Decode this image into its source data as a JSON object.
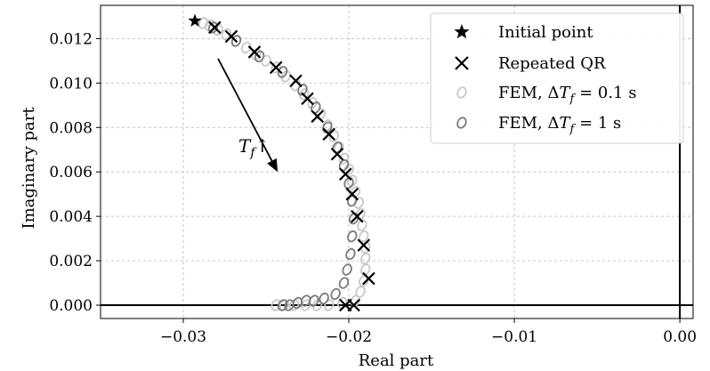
{
  "chart_data": {
    "type": "scatter",
    "xlabel": "Real part",
    "ylabel": "Imaginary part",
    "xlim": [
      -0.035,
      0.0008
    ],
    "ylim": [
      -0.0006,
      0.0135
    ],
    "x_ticks": [
      {
        "value": -0.03,
        "label": "−0.03"
      },
      {
        "value": -0.02,
        "label": "−0.02"
      },
      {
        "value": -0.01,
        "label": "−0.01"
      },
      {
        "value": 0.0,
        "label": "0.00"
      }
    ],
    "y_ticks": [
      {
        "value": 0.0,
        "label": "0.000"
      },
      {
        "value": 0.002,
        "label": "0.002"
      },
      {
        "value": 0.004,
        "label": "0.004"
      },
      {
        "value": 0.006,
        "label": "0.006"
      },
      {
        "value": 0.008,
        "label": "0.008"
      },
      {
        "value": 0.01,
        "label": "0.010"
      },
      {
        "value": 0.012,
        "label": "0.012"
      }
    ],
    "grid": true,
    "legend_position": "top-right",
    "reference_lines": {
      "x": 0.0,
      "y": 0.0
    },
    "annotation": {
      "text": "T_f↑",
      "from": [
        -0.0279,
        0.0111
      ],
      "to": [
        -0.0243,
        0.006
      ]
    },
    "series": [
      {
        "name": "Initial point",
        "marker": "star",
        "color": "#000000",
        "points": [
          [
            -0.0293,
            0.0128
          ]
        ]
      },
      {
        "name": "Repeated QR",
        "marker": "x",
        "color": "#000000",
        "points": [
          [
            -0.0281,
            0.0125
          ],
          [
            -0.0271,
            0.0121
          ],
          [
            -0.0257,
            0.0114
          ],
          [
            -0.0244,
            0.0107
          ],
          [
            -0.0232,
            0.0101
          ],
          [
            -0.0225,
            0.0093
          ],
          [
            -0.0219,
            0.0085
          ],
          [
            -0.0212,
            0.0077
          ],
          [
            -0.0207,
            0.0068
          ],
          [
            -0.0202,
            0.0059
          ],
          [
            -0.0198,
            0.005
          ],
          [
            -0.0195,
            0.004
          ],
          [
            -0.0191,
            0.0027
          ],
          [
            -0.0188,
            0.0012
          ],
          [
            -0.0202,
            0.0
          ],
          [
            -0.0197,
            0.0
          ]
        ]
      },
      {
        "name": "FEM, ΔT_f = 0.1 s",
        "marker": "o",
        "color": "#c8c8c8",
        "points": [
          [
            -0.0288,
            0.0127
          ],
          [
            -0.0284,
            0.0126
          ],
          [
            -0.0279,
            0.0124
          ],
          [
            -0.0274,
            0.0122
          ],
          [
            -0.0268,
            0.0119
          ],
          [
            -0.0262,
            0.0116
          ],
          [
            -0.0256,
            0.0113
          ],
          [
            -0.025,
            0.011
          ],
          [
            -0.0244,
            0.0107
          ],
          [
            -0.0238,
            0.0103
          ],
          [
            -0.0232,
            0.0099
          ],
          [
            -0.0227,
            0.0095
          ],
          [
            -0.0222,
            0.0091
          ],
          [
            -0.0217,
            0.0086
          ],
          [
            -0.0213,
            0.0081
          ],
          [
            -0.0209,
            0.0076
          ],
          [
            -0.0206,
            0.0071
          ],
          [
            -0.0203,
            0.0066
          ],
          [
            -0.02,
            0.0061
          ],
          [
            -0.0198,
            0.0056
          ],
          [
            -0.0196,
            0.0051
          ],
          [
            -0.0194,
            0.0046
          ],
          [
            -0.0193,
            0.0041
          ],
          [
            -0.0192,
            0.0036
          ],
          [
            -0.0191,
            0.0031
          ],
          [
            -0.019,
            0.0026
          ],
          [
            -0.019,
            0.0021
          ],
          [
            -0.019,
            0.0016
          ],
          [
            -0.0191,
            0.0011
          ],
          [
            -0.0193,
            0.0006
          ],
          [
            -0.0196,
            0.0002
          ],
          [
            -0.0204,
            0.0001
          ],
          [
            -0.0212,
            0.0
          ],
          [
            -0.0219,
            0.0
          ],
          [
            -0.0226,
            0.0
          ],
          [
            -0.0233,
            0.0
          ],
          [
            -0.0239,
            0.0
          ],
          [
            -0.0244,
            0.0
          ]
        ]
      },
      {
        "name": "FEM, ΔT_f = 1 s",
        "marker": "o",
        "color": "#7a7a7a",
        "points": [
          [
            -0.0282,
            0.0125
          ],
          [
            -0.0268,
            0.0119
          ],
          [
            -0.0254,
            0.0112
          ],
          [
            -0.024,
            0.0105
          ],
          [
            -0.0228,
            0.0097
          ],
          [
            -0.022,
            0.0089
          ],
          [
            -0.0213,
            0.008
          ],
          [
            -0.0207,
            0.0071
          ],
          [
            -0.0203,
            0.0063
          ],
          [
            -0.02,
            0.0055
          ],
          [
            -0.0198,
            0.0047
          ],
          [
            -0.0197,
            0.0039
          ],
          [
            -0.0198,
            0.0031
          ],
          [
            -0.0199,
            0.0023
          ],
          [
            -0.0201,
            0.0016
          ],
          [
            -0.0203,
            0.001
          ],
          [
            -0.0208,
            0.0005
          ],
          [
            -0.0215,
            0.0003
          ],
          [
            -0.0221,
            0.0002
          ],
          [
            -0.0226,
            0.0002
          ],
          [
            -0.0231,
            0.0001
          ],
          [
            -0.0236,
            0.0
          ],
          [
            -0.024,
            0.0
          ]
        ]
      }
    ]
  }
}
